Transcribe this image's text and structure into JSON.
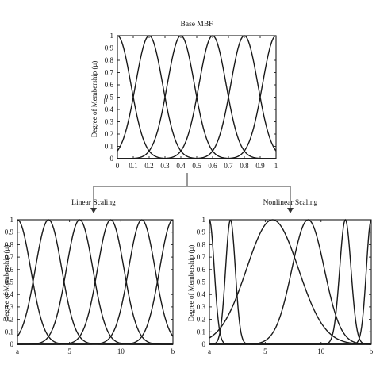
{
  "connector": {
    "left_label": "Linear Scaling",
    "right_label": "Nonlinear Scaling"
  },
  "chart_data": [
    {
      "id": "top",
      "type": "line",
      "title": "Base MBF",
      "ylabel": "Degree of Membership (μ)",
      "ylabel_extra": "μ",
      "xlim": [
        0,
        1
      ],
      "ylim": [
        0,
        1
      ],
      "xticks": [
        "0",
        "0.1",
        "0.2",
        "0.3",
        "0.4",
        "0.5",
        "0.6",
        "0.7",
        "0.8",
        "0.9",
        "1"
      ],
      "yticks": [
        "0",
        "0.1",
        "0.2",
        "0.3",
        "0.4",
        "0.5",
        "0.6",
        "0.7",
        "0.8",
        "0.9",
        "1"
      ],
      "grid": false,
      "centers": [
        0,
        0.2,
        0.4,
        0.6,
        0.8,
        1.0
      ],
      "sigma": 0.085
    },
    {
      "id": "bl",
      "type": "line",
      "title": "",
      "ylabel": "Degree of Membership (μ)",
      "xlim": [
        0,
        1
      ],
      "ylim": [
        0,
        1
      ],
      "xticks": [
        {
          "label": "a",
          "pos": 0
        },
        {
          "label": "5",
          "pos": 0.335
        },
        {
          "label": "10",
          "pos": 0.665
        },
        {
          "label": "b",
          "pos": 1
        }
      ],
      "yticks": [
        "0",
        "0.1",
        "0.2",
        "0.3",
        "0.4",
        "0.5",
        "0.6",
        "0.7",
        "0.8",
        "0.9",
        "1"
      ],
      "grid": false,
      "centers": [
        0,
        0.2,
        0.4,
        0.6,
        0.8,
        1.0
      ],
      "sigma": 0.085
    },
    {
      "id": "br",
      "type": "line",
      "title": "",
      "ylabel": "Degree of Membership (μ)",
      "xlim": [
        0,
        1
      ],
      "ylim": [
        0,
        1
      ],
      "xticks": [
        {
          "label": "a",
          "pos": 0
        },
        {
          "label": "5",
          "pos": 0.345
        },
        {
          "label": "10",
          "pos": 0.69
        },
        {
          "label": "b",
          "pos": 1
        }
      ],
      "yticks": [
        "0",
        "0.1",
        "0.2",
        "0.3",
        "0.4",
        "0.5",
        "0.6",
        "0.7",
        "0.8",
        "0.9",
        "1"
      ],
      "grid": false,
      "centers": [
        0,
        0.13,
        0.39,
        0.61,
        0.84,
        1.0
      ],
      "sigmas": [
        0.03,
        0.03,
        0.16,
        0.1,
        0.035,
        0.03
      ]
    }
  ]
}
